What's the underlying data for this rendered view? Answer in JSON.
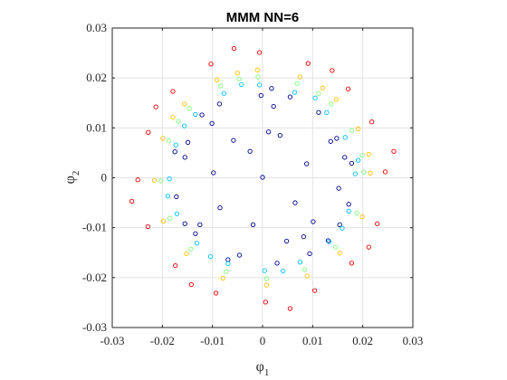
{
  "chart_data": {
    "type": "scatter",
    "title": "MMM NN=6",
    "xlabel": {
      "symbol": "φ",
      "sub": "1"
    },
    "ylabel": {
      "symbol": "φ",
      "sub": "2"
    },
    "xlim": [
      -0.03,
      0.03
    ],
    "ylim": [
      -0.03,
      0.03
    ],
    "xticks": [
      -0.03,
      -0.02,
      -0.01,
      0,
      0.01,
      0.02,
      0.03
    ],
    "yticks": [
      -0.03,
      -0.02,
      -0.01,
      0,
      0.01,
      0.02,
      0.03
    ],
    "xtick_labels": [
      "-0.03",
      "-0.02",
      "-0.01",
      "0",
      "0.01",
      "0.02",
      "0.03"
    ],
    "ytick_labels": [
      "-0.03",
      "-0.02",
      "-0.01",
      "0",
      "0.01",
      "0.02",
      "0.03"
    ],
    "grid": true,
    "colormap": "jet",
    "marker": "open circle",
    "series": [
      {
        "color": "#00008f",
        "points": [
          [
            0.0,
            0.0001
          ],
          [
            0.0035,
            0.0085
          ],
          [
            0.0065,
            -0.005
          ],
          [
            -0.0025,
            0.0053
          ],
          [
            -0.0085,
            -0.006
          ],
          [
            0.0088,
            0.0028
          ],
          [
            0.0012,
            0.0092
          ],
          [
            -0.0058,
            0.0075
          ],
          [
            0.0101,
            -0.0088
          ],
          [
            -0.0098,
            0.001
          ],
          [
            0.0048,
            -0.0127
          ],
          [
            0.0136,
            0.0073
          ],
          [
            -0.0019,
            -0.0094
          ],
          [
            -0.0125,
            -0.0094
          ],
          [
            0.0152,
            -0.0021
          ],
          [
            0.0022,
            0.0143
          ],
          [
            -0.0101,
            0.0109
          ],
          [
            0.0148,
            0.0079
          ],
          [
            -0.0046,
            -0.0155
          ],
          [
            -0.0155,
            0.0041
          ],
          [
            0.0082,
            -0.0118
          ],
          [
            -0.0003,
            0.0165
          ],
          [
            0.0131,
            -0.0126
          ],
          [
            -0.0134,
            -0.0112
          ],
          [
            0.0164,
            0.0041
          ],
          [
            -0.0086,
            0.0148
          ],
          [
            0.0055,
            0.0162
          ],
          [
            -0.0149,
            0.0071
          ],
          [
            0.0029,
            -0.0171
          ],
          [
            0.0172,
            -0.0053
          ],
          [
            -0.0172,
            -0.0038
          ],
          [
            0.0112,
            0.0131
          ],
          [
            -0.0121,
            0.0126
          ],
          [
            0.0154,
            -0.0094
          ],
          [
            -0.0069,
            -0.0164
          ],
          [
            -0.0155,
            -0.0092
          ],
          [
            0.0018,
            0.0179
          ],
          [
            0.0178,
            0.0029
          ],
          [
            0.0094,
            -0.0152
          ],
          [
            -0.0175,
            0.0052
          ]
        ]
      },
      {
        "color": "#00bfff",
        "points": [
          [
            0.0185,
            0.0008
          ],
          [
            0.0165,
            0.0081
          ],
          [
            0.0128,
            0.0131
          ],
          [
            0.0064,
            0.0171
          ],
          [
            -0.0006,
            0.0186
          ],
          [
            -0.0077,
            0.0169
          ],
          [
            -0.0134,
            0.0127
          ],
          [
            -0.0173,
            0.0066
          ],
          [
            -0.0186,
            -0.0002
          ],
          [
            -0.0171,
            -0.0072
          ],
          [
            -0.0131,
            -0.0131
          ],
          [
            -0.0069,
            -0.0172
          ],
          [
            0.0004,
            -0.0186
          ],
          [
            0.0075,
            -0.0169
          ],
          [
            0.0133,
            -0.0128
          ],
          [
            0.0172,
            -0.0067
          ],
          [
            0.0191,
            0.0035
          ],
          [
            0.0105,
            0.016
          ],
          [
            -0.0042,
            0.0187
          ],
          [
            -0.0156,
            0.0104
          ],
          [
            -0.0189,
            -0.0037
          ],
          [
            -0.0104,
            -0.0158
          ],
          [
            0.0041,
            -0.0187
          ],
          [
            0.0159,
            -0.0101
          ]
        ]
      },
      {
        "color": "#7fff7f",
        "points": [
          [
            0.0202,
            0.0011
          ],
          [
            0.0178,
            0.0095
          ],
          [
            0.0137,
            0.0148
          ],
          [
            0.0069,
            0.0189
          ],
          [
            -0.0009,
            0.0202
          ],
          [
            -0.0084,
            0.0184
          ],
          [
            -0.0146,
            0.0139
          ],
          [
            -0.0187,
            0.0074
          ],
          [
            -0.0203,
            -0.0006
          ],
          [
            -0.0185,
            -0.0081
          ],
          [
            -0.0143,
            -0.0143
          ],
          [
            -0.0073,
            -0.0188
          ],
          [
            0.0008,
            -0.0202
          ],
          [
            0.0084,
            -0.0184
          ],
          [
            0.0146,
            -0.0139
          ],
          [
            0.0188,
            -0.0071
          ],
          [
            0.0199,
            0.0045
          ],
          [
            0.0112,
            0.0169
          ],
          [
            -0.0047,
            0.0198
          ],
          [
            -0.0168,
            0.0113
          ]
        ]
      },
      {
        "color": "#ffbf00",
        "points": [
          [
            0.0215,
            0.0009
          ],
          [
            0.0191,
            0.0098
          ],
          [
            0.0147,
            0.0157
          ],
          [
            0.0075,
            0.0202
          ],
          [
            -0.001,
            0.0216
          ],
          [
            -0.0091,
            0.0196
          ],
          [
            -0.0156,
            0.0148
          ],
          [
            -0.0199,
            0.0079
          ],
          [
            -0.0216,
            -0.0005
          ],
          [
            -0.0198,
            -0.0087
          ],
          [
            -0.0152,
            -0.0152
          ],
          [
            -0.0079,
            -0.0201
          ],
          [
            0.0008,
            -0.0215
          ],
          [
            0.0089,
            -0.0197
          ],
          [
            0.0154,
            -0.0151
          ],
          [
            0.0199,
            -0.0078
          ],
          [
            0.0212,
            0.0047
          ],
          [
            0.012,
            0.018
          ],
          [
            -0.005,
            0.021
          ],
          [
            -0.0179,
            0.0121
          ]
        ]
      },
      {
        "color": "#ef0000",
        "points": [
          [
            0.0245,
            0.0012
          ],
          [
            0.0218,
            0.0112
          ],
          [
            0.0171,
            0.0178
          ],
          [
            0.0091,
            0.0229
          ],
          [
            -0.0006,
            0.0251
          ],
          [
            -0.0103,
            0.0228
          ],
          [
            -0.0179,
            0.0173
          ],
          [
            -0.0228,
            0.0091
          ],
          [
            -0.0249,
            -0.0004
          ],
          [
            -0.0229,
            -0.0098
          ],
          [
            -0.0174,
            -0.0176
          ],
          [
            -0.0093,
            -0.0231
          ],
          [
            0.0006,
            -0.0249
          ],
          [
            0.0104,
            -0.0226
          ],
          [
            0.0178,
            -0.0171
          ],
          [
            0.0229,
            -0.0092
          ],
          [
            0.0262,
            0.0053
          ],
          [
            0.0139,
            0.0215
          ],
          [
            -0.0057,
            0.0259
          ],
          [
            -0.0213,
            0.0142
          ],
          [
            -0.0261,
            -0.0047
          ],
          [
            -0.0142,
            -0.0214
          ],
          [
            0.0055,
            -0.0262
          ],
          [
            0.0212,
            -0.0139
          ]
        ]
      }
    ]
  }
}
